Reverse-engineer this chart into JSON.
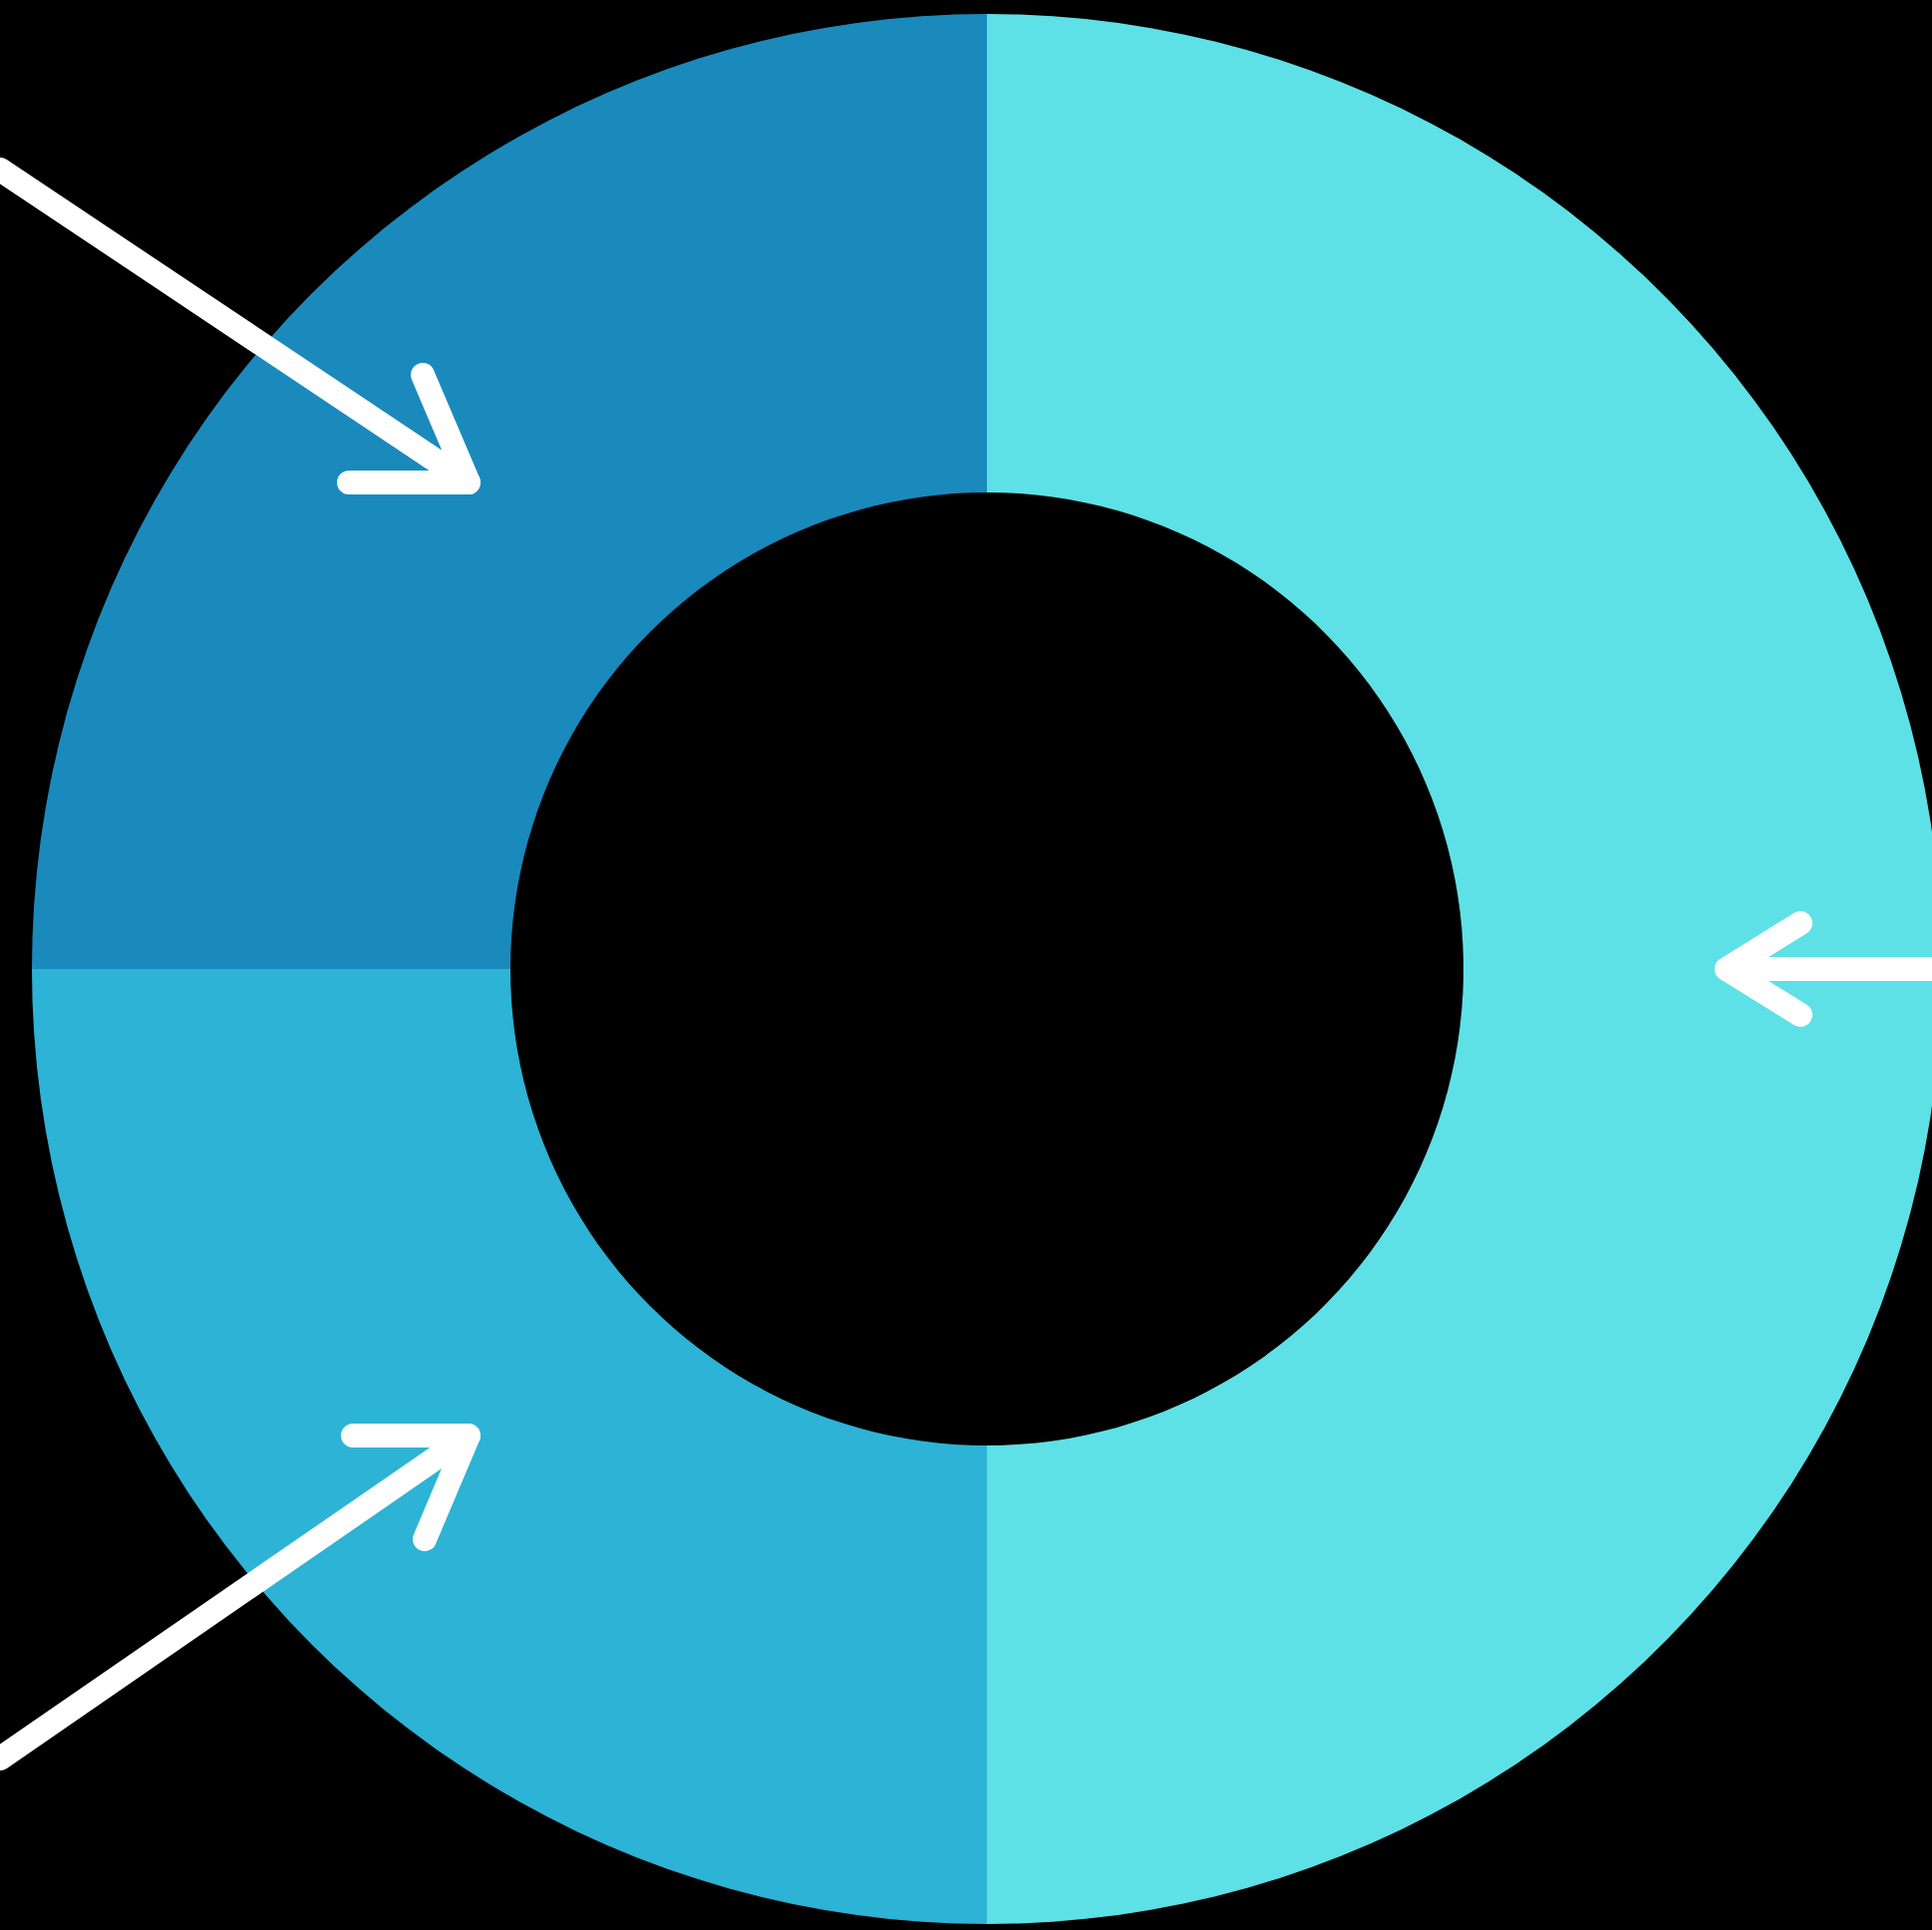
{
  "chart_data": {
    "type": "donut",
    "categories": [
      null,
      null,
      null
    ],
    "values": [
      50,
      25,
      25
    ],
    "colors": [
      "#5ee1e6",
      "#2db3d5",
      "#1a8abc"
    ]
  }
}
